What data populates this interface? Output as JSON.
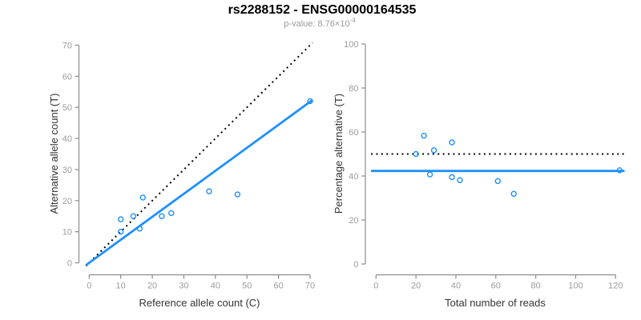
{
  "header": {
    "title": "rs2288152 - ENSG00000164535",
    "subtitle_base": "p-value: 8.76×10",
    "subtitle_exponent": "-4"
  },
  "colors": {
    "accent": "#1E90FF",
    "dotted_line": "#000000",
    "axis": "#8c8c8c",
    "tick_label": "#9c9c9c",
    "axis_title": "#333333",
    "title": "#000000",
    "subtitle": "#9a9a9a"
  },
  "chart_data": [
    {
      "type": "scatter",
      "xlabel": "Reference allele count (C)",
      "ylabel": "Alternative allele count (T)",
      "xlim": [
        0,
        70
      ],
      "ylim": [
        0,
        70
      ],
      "xticks": [
        0,
        10,
        20,
        30,
        40,
        50,
        60,
        70
      ],
      "yticks": [
        0,
        10,
        20,
        30,
        40,
        50,
        60,
        70
      ],
      "grid": false,
      "points": [
        [
          10,
          10
        ],
        [
          10,
          14
        ],
        [
          14,
          15
        ],
        [
          16,
          11
        ],
        [
          17,
          21
        ],
        [
          23,
          15
        ],
        [
          26,
          16
        ],
        [
          38,
          23
        ],
        [
          47,
          22
        ],
        [
          70,
          52
        ]
      ],
      "lines": [
        {
          "name": "expected-ratio",
          "type": "abline",
          "style": "dotted",
          "color": "#000000",
          "slope": 1,
          "intercept": 0
        },
        {
          "name": "observed-ratio",
          "type": "abline",
          "style": "solid",
          "color": "#1E90FF",
          "slope": 0.74,
          "intercept": 0
        }
      ]
    },
    {
      "type": "scatter",
      "xlabel": "Total number of reads",
      "ylabel": "Percentage alternative (T)",
      "xlim": [
        0,
        120
      ],
      "ylim": [
        0,
        100
      ],
      "xticks": [
        0,
        20,
        40,
        60,
        80,
        100,
        120
      ],
      "yticks": [
        0,
        20,
        40,
        60,
        80,
        100
      ],
      "grid": false,
      "points": [
        [
          20,
          50.0
        ],
        [
          24,
          58.3
        ],
        [
          27,
          40.7
        ],
        [
          29,
          51.7
        ],
        [
          38,
          55.3
        ],
        [
          38,
          39.5
        ],
        [
          42,
          38.1
        ],
        [
          61,
          37.7
        ],
        [
          69,
          31.9
        ],
        [
          122,
          42.6
        ]
      ],
      "lines": [
        {
          "name": "expected-percentage",
          "type": "hline",
          "style": "dotted",
          "color": "#000000",
          "y": 50
        },
        {
          "name": "observed-percentage",
          "type": "hline",
          "style": "solid",
          "color": "#1E90FF",
          "y": 42.3
        }
      ]
    }
  ]
}
